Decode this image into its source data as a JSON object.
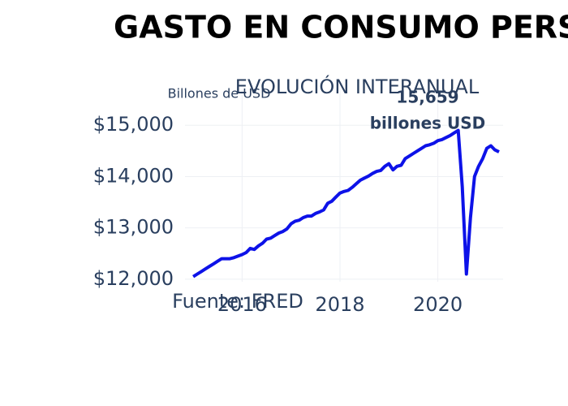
{
  "chart_data": {
    "type": "line",
    "title": "GASTO EN CONSUMO PERSONAL",
    "subtitle": "EVOLUCIÓN INTERANUAL",
    "y_label": "Billones de USD",
    "source": "Fuente: FRED",
    "annotation": [
      "15,659",
      "billones USD"
    ],
    "x": [
      "2015-01",
      "2015-02",
      "2015-03",
      "2015-04",
      "2015-05",
      "2015-06",
      "2015-07",
      "2015-08",
      "2015-09",
      "2015-10",
      "2015-11",
      "2015-12",
      "2016-01",
      "2016-02",
      "2016-03",
      "2016-04",
      "2016-05",
      "2016-06",
      "2016-07",
      "2016-08",
      "2016-09",
      "2016-10",
      "2016-11",
      "2016-12",
      "2017-01",
      "2017-02",
      "2017-03",
      "2017-04",
      "2017-05",
      "2017-06",
      "2017-07",
      "2017-08",
      "2017-09",
      "2017-10",
      "2017-11",
      "2017-12",
      "2018-01",
      "2018-02",
      "2018-03",
      "2018-04",
      "2018-05",
      "2018-06",
      "2018-07",
      "2018-08",
      "2018-09",
      "2018-10",
      "2018-11",
      "2018-12",
      "2019-01",
      "2019-02",
      "2019-03",
      "2019-04",
      "2019-05",
      "2019-06",
      "2019-07",
      "2019-08",
      "2019-09",
      "2019-10",
      "2019-11",
      "2019-12",
      "2020-01",
      "2020-02",
      "2020-03",
      "2020-04",
      "2020-05",
      "2020-06",
      "2020-07",
      "2020-08",
      "2020-09",
      "2020-10",
      "2020-11",
      "2020-12",
      "2021-01",
      "2021-02",
      "2021-03",
      "2021-04"
    ],
    "values": [
      12050,
      12100,
      12150,
      12200,
      12250,
      12300,
      12350,
      12400,
      12400,
      12400,
      12420,
      12450,
      12480,
      12520,
      12600,
      12580,
      12650,
      12700,
      12780,
      12800,
      12850,
      12900,
      12930,
      12980,
      13080,
      13130,
      13150,
      13200,
      13230,
      13230,
      13280,
      13310,
      13350,
      13480,
      13520,
      13600,
      13680,
      13710,
      13730,
      13790,
      13860,
      13930,
      13970,
      14010,
      14060,
      14100,
      14120,
      14200,
      14250,
      14130,
      14200,
      14220,
      14350,
      14400,
      14450,
      14500,
      14550,
      14600,
      14620,
      14650,
      14700,
      14720,
      14760,
      14800,
      14850,
      14900,
      13800,
      12100,
      13200,
      14000,
      14200,
      14350,
      14550,
      14600,
      14520,
      14480
    ],
    "color": "#0d12e8",
    "xlim": [
      "2014-11",
      "2021-05"
    ],
    "xticks": [
      {
        "value": "2016-01",
        "label": "2016"
      },
      {
        "value": "2018-01",
        "label": "2018"
      },
      {
        "value": "2020-01",
        "label": "2020"
      }
    ],
    "ylim": [
      11950,
      15700
    ],
    "yticks": [
      {
        "value": 12000,
        "label": "$12,000"
      },
      {
        "value": 13000,
        "label": "$13,000"
      },
      {
        "value": 14000,
        "label": "$14,000"
      },
      {
        "value": 15000,
        "label": "$15,000"
      }
    ],
    "grid": true
  }
}
